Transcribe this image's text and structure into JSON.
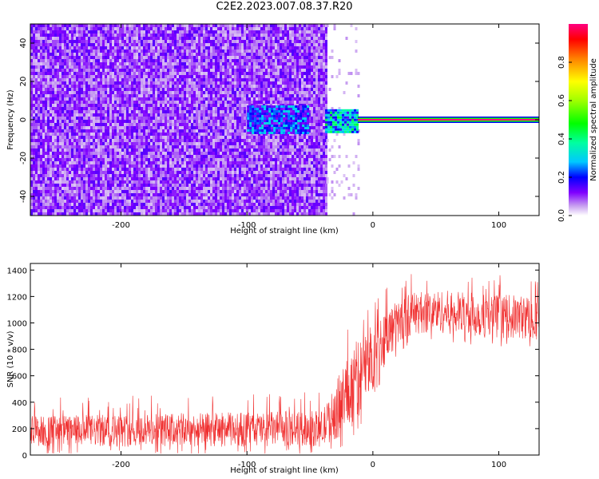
{
  "title": "C2E2.2023.007.08.37.R20",
  "chart_data": [
    {
      "type": "heatmap",
      "name": "spectrogram",
      "xlabel": "Height of straight line (km)",
      "ylabel": "Frequency (Hz)",
      "xlim": [
        -272,
        132
      ],
      "ylim": [
        -50,
        50
      ],
      "xticks": [
        -200,
        -100,
        0,
        100
      ],
      "yticks": [
        -40,
        -20,
        0,
        20,
        40
      ],
      "colorbar": {
        "label": "Normalized spectral amplitude",
        "range": [
          0,
          1
        ],
        "ticks": [
          0.0,
          0.2,
          0.4,
          0.6,
          0.8
        ]
      },
      "features": [
        {
          "x_range": [
            -272,
            -37
          ],
          "freq_range": [
            -50,
            50
          ],
          "amplitude": "low-moderate noise (violet/purple)"
        },
        {
          "x_range": [
            -100,
            -52
          ],
          "freq_range": [
            -5,
            5
          ],
          "amplitude": 0.25
        },
        {
          "x_range": [
            -38,
            -12
          ],
          "freq_range": [
            -4,
            3
          ],
          "amplitude": 0.35
        },
        {
          "x_range": [
            -12,
            132
          ],
          "freq_range": [
            -0.5,
            0.5
          ],
          "amplitude": 1.0
        }
      ]
    },
    {
      "type": "line",
      "name": "snr",
      "xlabel": "Height of straight line (km)",
      "ylabel": "SNR (10 * v/v)",
      "xlim": [
        -272,
        132
      ],
      "ylim": [
        0,
        1450
      ],
      "xticks": [
        -200,
        -100,
        0,
        100
      ],
      "yticks": [
        0,
        200,
        400,
        600,
        800,
        1000,
        1200,
        1400
      ],
      "color": "#f03030",
      "envelope": [
        {
          "x": -272,
          "low": 40,
          "high": 320
        },
        {
          "x": -200,
          "low": 40,
          "high": 330
        },
        {
          "x": -100,
          "low": 40,
          "high": 350
        },
        {
          "x": -40,
          "low": 40,
          "high": 360
        },
        {
          "x": -30,
          "low": 80,
          "high": 560
        },
        {
          "x": -20,
          "low": 100,
          "high": 850
        },
        {
          "x": -10,
          "low": 250,
          "high": 950
        },
        {
          "x": 0,
          "low": 450,
          "high": 1050
        },
        {
          "x": 10,
          "low": 650,
          "high": 1150
        },
        {
          "x": 20,
          "low": 800,
          "high": 1200
        },
        {
          "x": 30,
          "low": 880,
          "high": 1260
        },
        {
          "x": 50,
          "low": 900,
          "high": 1280
        },
        {
          "x": 80,
          "low": 860,
          "high": 1260
        },
        {
          "x": 110,
          "low": 850,
          "high": 1240
        },
        {
          "x": 132,
          "low": 840,
          "high": 1240
        }
      ]
    }
  ]
}
